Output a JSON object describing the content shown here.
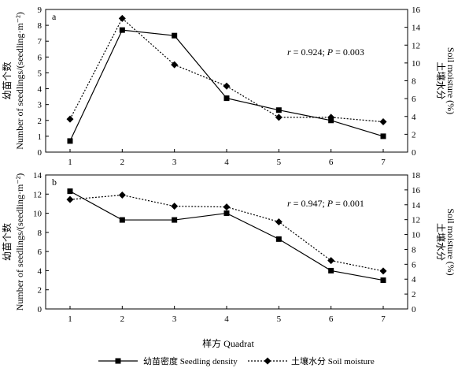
{
  "x_axis_label": "样方 Quadrat",
  "legend": {
    "density_label": "幼苗密度  Seedling density",
    "moisture_label": "土壤水分  Soil moisture"
  },
  "chart_data": [
    {
      "type": "line",
      "panel_label": "a",
      "annotation": "r = 0.924; P = 0.003",
      "x": [
        1,
        2,
        3,
        4,
        5,
        6,
        7
      ],
      "xticks": [
        "1",
        "2",
        "3",
        "4",
        "5",
        "6",
        "7"
      ],
      "ylabel_left_1": "幼苗个数",
      "ylabel_left_2": "Number of seedlings/(seedling·m⁻²)",
      "ylabel_right_1": "土壤水分",
      "ylabel_right_2": "Soil moisture (%)",
      "ylim_left": [
        0,
        9
      ],
      "yticks_left": [
        "0",
        "1",
        "2",
        "3",
        "4",
        "5",
        "6",
        "7",
        "8",
        "9"
      ],
      "ylim_right": [
        0,
        16
      ],
      "yticks_right": [
        "0",
        "2",
        "4",
        "6",
        "8",
        "10",
        "12",
        "14",
        "16"
      ],
      "series": [
        {
          "values": [
            0.7,
            7.7,
            7.35,
            3.4,
            2.65,
            2.0,
            1.0
          ],
          "axis": "left",
          "marker": "square",
          "style": "solid"
        },
        {
          "values": [
            3.7,
            15.0,
            9.8,
            7.4,
            3.9,
            3.9,
            3.4
          ],
          "axis": "right",
          "marker": "diamond",
          "style": "dotted"
        }
      ]
    },
    {
      "type": "line",
      "panel_label": "b",
      "annotation": "r = 0.947; P = 0.001",
      "x": [
        1,
        2,
        3,
        4,
        5,
        6,
        7
      ],
      "xticks": [
        "1",
        "2",
        "3",
        "4",
        "5",
        "6",
        "7"
      ],
      "ylabel_left_1": "幼苗个数",
      "ylabel_left_2": "Number of seedlings/(seedling·m⁻²)",
      "ylabel_right_1": "土壤水分",
      "ylabel_right_2": "Soil moisture (%)",
      "ylim_left": [
        0,
        14
      ],
      "yticks_left": [
        "0",
        "2",
        "4",
        "6",
        "8",
        "10",
        "12",
        "14"
      ],
      "ylim_right": [
        0,
        18
      ],
      "yticks_right": [
        "0",
        "2",
        "4",
        "6",
        "8",
        "10",
        "12",
        "14",
        "16",
        "18"
      ],
      "series": [
        {
          "values": [
            12.3,
            9.3,
            9.3,
            10.0,
            7.3,
            4.0,
            3.0
          ],
          "axis": "left",
          "marker": "square",
          "style": "solid"
        },
        {
          "values": [
            14.7,
            15.3,
            13.8,
            13.7,
            11.7,
            6.5,
            5.1
          ],
          "axis": "right",
          "marker": "diamond",
          "style": "dotted"
        }
      ]
    }
  ]
}
